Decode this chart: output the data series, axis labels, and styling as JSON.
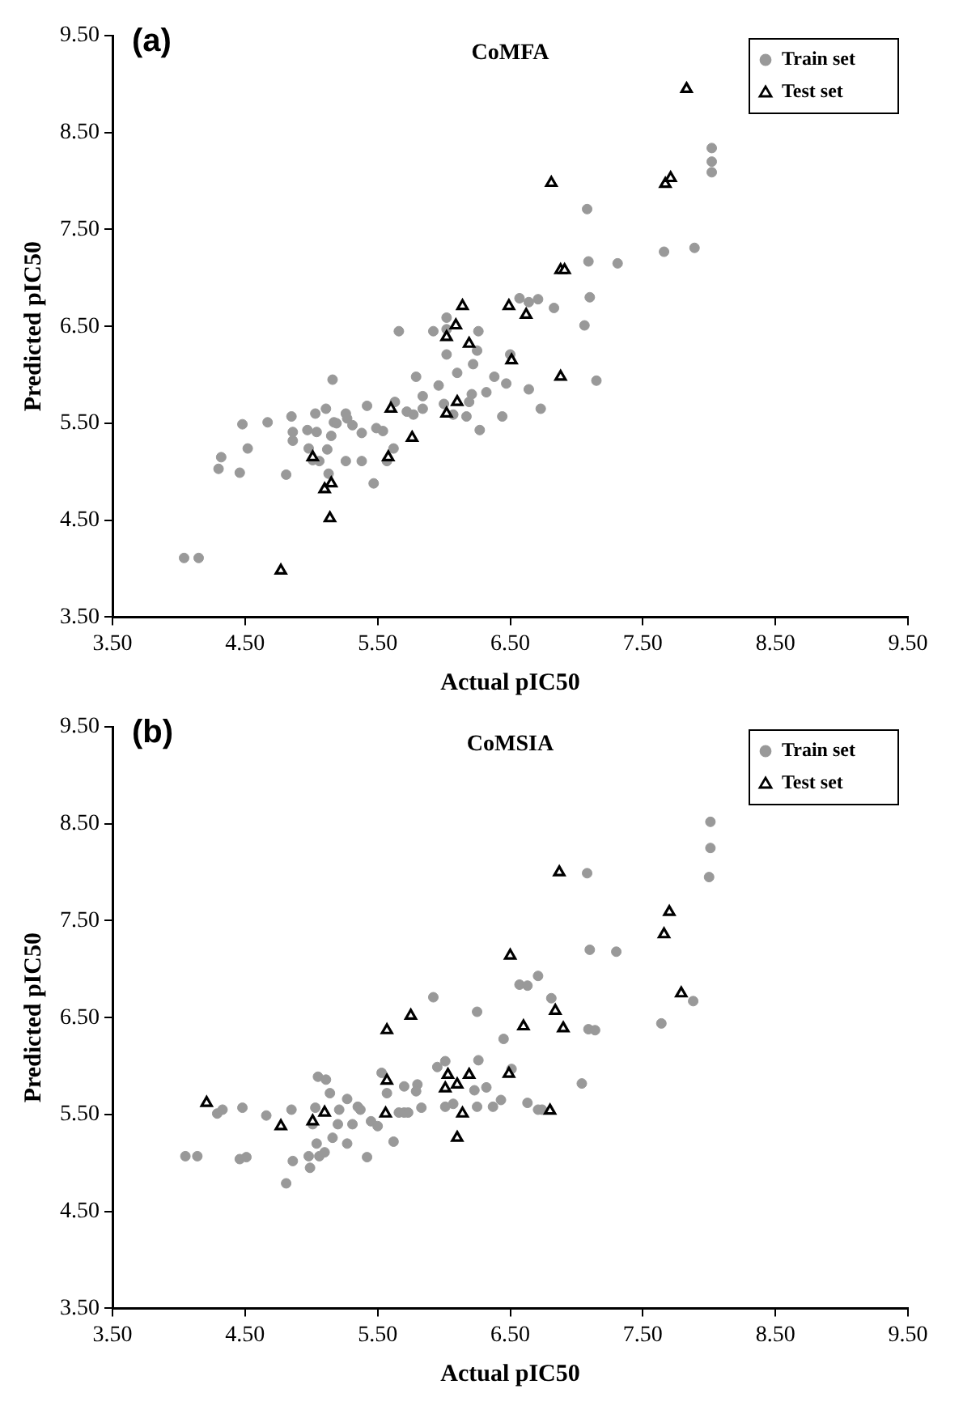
{
  "chart_data": [
    {
      "type": "scatter",
      "title": "CoMFA",
      "xlabel": "Actual pIC50",
      "ylabel": "Predicted pIC50",
      "annotations": [
        "(a)"
      ],
      "xlim": [
        3.5,
        9.5
      ],
      "ylim": [
        3.5,
        9.5
      ],
      "xticks": [
        {
          "value": 3.5,
          "label": "3.50"
        },
        {
          "value": 4.5,
          "label": "4.50"
        },
        {
          "value": 5.5,
          "label": "5.50"
        },
        {
          "value": 6.5,
          "label": "6.50"
        },
        {
          "value": 7.5,
          "label": "7.50"
        },
        {
          "value": 8.5,
          "label": "8.50"
        },
        {
          "value": 9.5,
          "label": "9.50"
        }
      ],
      "yticks": [
        {
          "value": 3.5,
          "label": "3.50"
        },
        {
          "value": 4.5,
          "label": "4.50"
        },
        {
          "value": 5.5,
          "label": "5.50"
        },
        {
          "value": 6.5,
          "label": "6.50"
        },
        {
          "value": 7.5,
          "label": "7.50"
        },
        {
          "value": 8.5,
          "label": "8.50"
        },
        {
          "value": 9.5,
          "label": "9.50"
        }
      ],
      "grid": false,
      "legend": "top right",
      "series": [
        {
          "name": "Train set",
          "color": "#999999",
          "marker": "circle",
          "x": [
            4.04,
            4.15,
            4.3,
            4.32,
            4.46,
            4.48,
            4.52,
            4.67,
            4.81,
            4.85,
            4.86,
            4.86,
            4.97,
            4.98,
            5.01,
            5.03,
            5.06,
            5.04,
            5.11,
            5.12,
            5.13,
            5.15,
            5.16,
            5.17,
            5.19,
            5.26,
            5.27,
            5.26,
            5.31,
            5.38,
            5.38,
            5.42,
            5.47,
            5.49,
            5.54,
            5.57,
            5.62,
            5.63,
            5.66,
            5.72,
            5.77,
            5.79,
            5.84,
            5.84,
            5.92,
            5.96,
            6.0,
            6.02,
            6.02,
            6.02,
            6.07,
            6.1,
            6.17,
            6.19,
            6.21,
            6.22,
            6.25,
            6.26,
            6.27,
            6.32,
            6.38,
            6.44,
            6.47,
            6.57,
            6.64,
            6.71,
            6.83,
            6.64,
            6.73,
            7.06,
            7.1,
            7.09,
            7.31,
            7.08,
            7.66,
            7.89,
            7.15,
            8.02,
            8.02,
            8.02,
            6.5
          ],
          "values": [
            4.11,
            4.11,
            5.03,
            5.15,
            4.99,
            5.49,
            5.24,
            5.51,
            4.97,
            5.57,
            5.41,
            5.32,
            5.43,
            5.24,
            5.12,
            5.6,
            5.11,
            5.41,
            5.65,
            5.23,
            4.98,
            5.37,
            5.95,
            5.51,
            5.5,
            5.6,
            5.55,
            5.11,
            5.48,
            5.11,
            5.4,
            5.68,
            4.88,
            5.45,
            5.42,
            5.11,
            5.24,
            5.72,
            6.45,
            5.62,
            5.59,
            5.98,
            5.65,
            5.78,
            6.45,
            5.89,
            5.7,
            6.59,
            6.47,
            6.21,
            5.59,
            6.02,
            5.57,
            5.72,
            5.8,
            6.11,
            6.25,
            6.45,
            5.43,
            5.82,
            5.98,
            5.57,
            5.91,
            6.79,
            6.75,
            6.78,
            6.69,
            5.85,
            5.65,
            6.51,
            6.8,
            7.17,
            7.15,
            7.71,
            7.27,
            7.31,
            5.94,
            8.34,
            8.2,
            8.09,
            6.21
          ]
        },
        {
          "name": "Test set",
          "color": "#000000",
          "marker": "triangle",
          "x": [
            4.77,
            5.01,
            5.1,
            5.15,
            5.14,
            5.58,
            5.76,
            5.6,
            6.02,
            6.1,
            6.14,
            6.09,
            6.02,
            6.19,
            6.49,
            6.62,
            6.51,
            6.88,
            6.81,
            6.88,
            6.91,
            7.67,
            7.71,
            7.83
          ],
          "values": [
            3.98,
            5.15,
            4.82,
            4.88,
            4.52,
            5.15,
            5.35,
            5.65,
            5.6,
            5.72,
            6.71,
            6.51,
            6.39,
            6.32,
            6.71,
            6.62,
            6.15,
            5.98,
            7.98,
            7.08,
            7.08,
            7.97,
            8.03,
            8.95
          ]
        }
      ]
    },
    {
      "type": "scatter",
      "title": "CoMSIA",
      "xlabel": "Actual pIC50",
      "ylabel": "Predicted pIC50",
      "annotations": [
        "(b)"
      ],
      "xlim": [
        3.5,
        9.5
      ],
      "ylim": [
        3.5,
        9.5
      ],
      "xticks": [
        {
          "value": 3.5,
          "label": "3.50"
        },
        {
          "value": 4.5,
          "label": "4.50"
        },
        {
          "value": 5.5,
          "label": "5.50"
        },
        {
          "value": 6.5,
          "label": "6.50"
        },
        {
          "value": 7.5,
          "label": "7.50"
        },
        {
          "value": 8.5,
          "label": "8.50"
        },
        {
          "value": 9.5,
          "label": "9.50"
        }
      ],
      "yticks": [
        {
          "value": 3.5,
          "label": "3.50"
        },
        {
          "value": 4.5,
          "label": "4.50"
        },
        {
          "value": 5.5,
          "label": "5.50"
        },
        {
          "value": 6.5,
          "label": "6.50"
        },
        {
          "value": 7.5,
          "label": "7.50"
        },
        {
          "value": 8.5,
          "label": "8.50"
        },
        {
          "value": 9.5,
          "label": "9.50"
        }
      ],
      "grid": false,
      "legend": "top right",
      "series": [
        {
          "name": "Train set",
          "color": "#999999",
          "marker": "circle",
          "x": [
            4.05,
            4.14,
            4.29,
            4.33,
            4.48,
            4.46,
            4.51,
            4.66,
            4.81,
            4.85,
            4.86,
            4.98,
            4.99,
            5.04,
            5.06,
            5.1,
            5.01,
            5.03,
            5.05,
            5.11,
            5.14,
            5.16,
            5.2,
            5.21,
            5.27,
            5.27,
            5.31,
            5.35,
            5.37,
            5.42,
            5.45,
            5.5,
            5.53,
            5.57,
            5.62,
            5.66,
            5.7,
            5.73,
            5.7,
            5.8,
            5.79,
            5.83,
            5.92,
            5.95,
            6.01,
            6.01,
            6.07,
            6.23,
            6.25,
            6.26,
            6.25,
            6.32,
            6.37,
            6.45,
            6.43,
            6.51,
            6.57,
            6.63,
            6.71,
            6.81,
            6.63,
            6.71,
            6.74,
            7.04,
            7.08,
            7.1,
            7.3,
            7.09,
            7.14,
            7.64,
            7.88,
            8.01,
            8.01,
            8.0
          ],
          "values": [
            5.07,
            5.07,
            5.51,
            5.55,
            5.57,
            5.04,
            5.06,
            5.49,
            4.79,
            5.55,
            5.02,
            5.07,
            4.95,
            5.2,
            5.07,
            5.11,
            5.4,
            5.57,
            5.89,
            5.86,
            5.72,
            5.26,
            5.4,
            5.55,
            5.66,
            5.2,
            5.4,
            5.58,
            5.55,
            5.06,
            5.43,
            5.38,
            5.93,
            5.72,
            5.22,
            5.52,
            5.52,
            5.52,
            5.79,
            5.81,
            5.74,
            5.57,
            6.71,
            5.99,
            6.05,
            5.58,
            5.61,
            5.75,
            6.56,
            6.06,
            5.58,
            5.78,
            5.58,
            6.28,
            5.65,
            5.97,
            6.84,
            6.83,
            6.93,
            6.7,
            5.62,
            5.55,
            5.55,
            5.82,
            7.99,
            7.2,
            7.18,
            6.38,
            6.37,
            6.44,
            6.67,
            8.52,
            8.25,
            7.95
          ]
        },
        {
          "name": "Test set",
          "color": "#000000",
          "marker": "triangle",
          "x": [
            4.21,
            4.77,
            5.01,
            5.1,
            5.56,
            5.57,
            5.57,
            5.75,
            6.01,
            6.03,
            6.1,
            6.14,
            6.19,
            6.1,
            6.87,
            6.5,
            6.6,
            6.84,
            6.9,
            6.49,
            6.8,
            7.7,
            7.66,
            7.79
          ],
          "values": [
            5.62,
            5.38,
            5.43,
            5.52,
            5.51,
            6.37,
            5.85,
            6.52,
            5.77,
            5.91,
            5.81,
            5.51,
            5.91,
            5.26,
            8.0,
            7.14,
            6.41,
            6.57,
            6.39,
            5.92,
            5.54,
            7.59,
            7.36,
            6.75
          ]
        }
      ]
    }
  ]
}
